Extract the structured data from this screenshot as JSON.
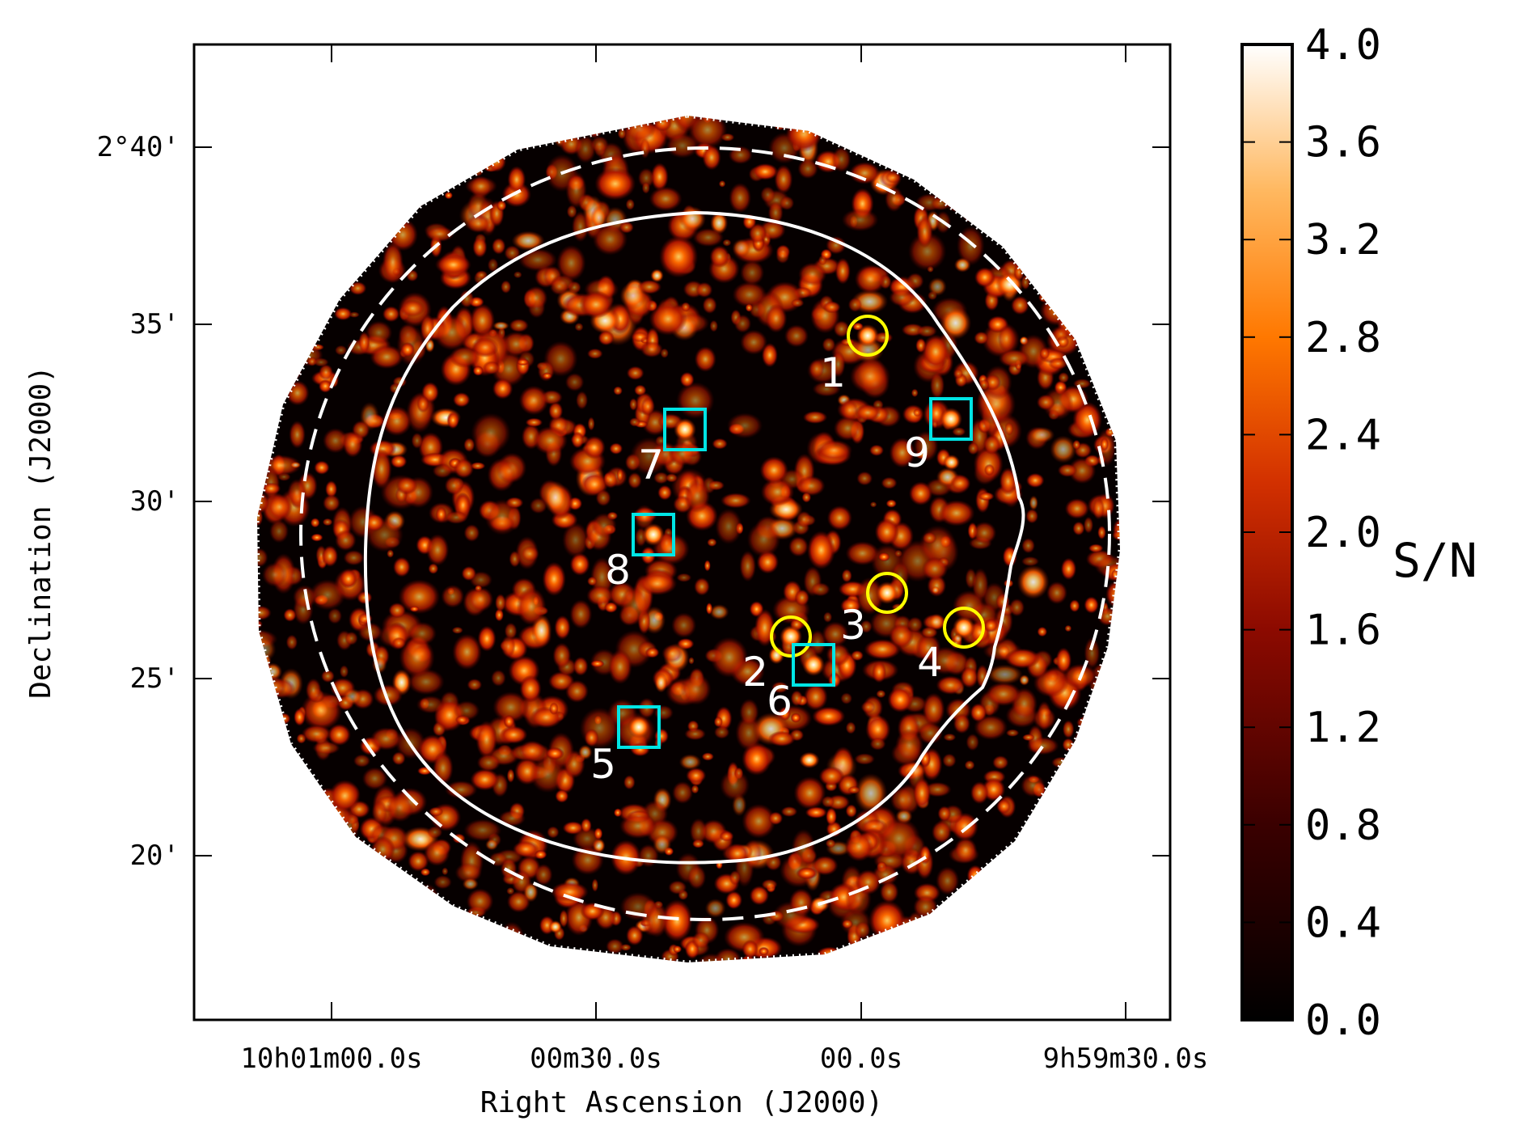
{
  "figure": {
    "xlabel": "Right Ascension (J2000)",
    "ylabel": "Declination (J2000)",
    "x_ticks": [
      "10h01m00.0s",
      "00m30.0s",
      "00.0s",
      "9h59m30.0s"
    ],
    "y_ticks": [
      "2°40'",
      "35'",
      "30'",
      "25'",
      "20'"
    ],
    "colorbar": {
      "label": "S/N",
      "ticks": [
        "0.0",
        "0.4",
        "0.8",
        "1.2",
        "1.6",
        "2.0",
        "2.4",
        "2.8",
        "3.2",
        "3.6",
        "4.0"
      ],
      "range": [
        0.0,
        4.0
      ],
      "colormap": "gist_heat"
    },
    "colors": {
      "circle_marker": "#ffff00",
      "square_marker": "#00e5e5",
      "contour": "#ffffff",
      "label": "#ffffff"
    },
    "sources": [
      {
        "id": "1",
        "marker": "circle"
      },
      {
        "id": "2",
        "marker": "circle"
      },
      {
        "id": "3",
        "marker": "circle"
      },
      {
        "id": "4",
        "marker": "circle"
      },
      {
        "id": "5",
        "marker": "square"
      },
      {
        "id": "6",
        "marker": "square"
      },
      {
        "id": "7",
        "marker": "square"
      },
      {
        "id": "8",
        "marker": "square"
      },
      {
        "id": "9",
        "marker": "square"
      }
    ]
  }
}
